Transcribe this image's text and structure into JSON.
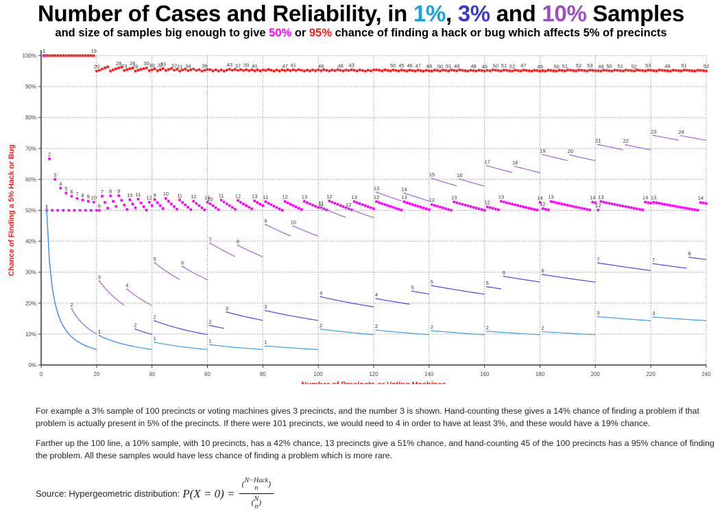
{
  "title": {
    "parts": [
      {
        "text": "Number of Cases and Reliability, in ",
        "color": "#000000"
      },
      {
        "text": "1%",
        "color": "#1aa0e0"
      },
      {
        "text": ", ",
        "color": "#000000"
      },
      {
        "text": "3%",
        "color": "#3b3bd0"
      },
      {
        "text": " and ",
        "color": "#000000"
      },
      {
        "text": "10%",
        "color": "#9b4fc0"
      },
      {
        "text": " Samples",
        "color": "#000000"
      }
    ]
  },
  "subtitle": {
    "parts": [
      {
        "text": "and size of samples big enough to give ",
        "color": "#000000"
      },
      {
        "text": "50%",
        "color": "#ff00ff"
      },
      {
        "text": " or ",
        "color": "#000000"
      },
      {
        "text": "95%",
        "color": "#ff1a1a"
      },
      {
        "text": " chance of finding a hack or bug which affects 5% of precincts",
        "color": "#000000"
      }
    ]
  },
  "chart_data": {
    "type": "scatter",
    "title": "Number of Cases and Reliability, in 1%, 3% and 10% Samples",
    "xlabel": "Number of Precincts or Voting Machines",
    "ylabel": "Chance of Finding a 5% Hack or Bug",
    "xlim": [
      0,
      240
    ],
    "ylim": [
      0,
      100
    ],
    "xticks": [
      0,
      20,
      40,
      60,
      80,
      100,
      120,
      140,
      160,
      180,
      200,
      220,
      240
    ],
    "yticks": [
      0,
      10,
      20,
      30,
      40,
      50,
      60,
      70,
      80,
      90,
      100
    ],
    "ytick_labels": [
      "0%",
      "10%",
      "20%",
      "30%",
      "40%",
      "50%",
      "60%",
      "70%",
      "80%",
      "90%",
      "100%"
    ],
    "grid": true,
    "hack_fraction": 0.05,
    "formula_note": "Hypergeometric: P(find) = 1 - C(N-Hack, n) / C(N, n)",
    "series": [
      {
        "name": "95% chance sample",
        "color": "#ff1a1a",
        "style": "markers",
        "labels": [
          [
            1,
            "1"
          ],
          [
            19,
            "19"
          ],
          [
            20,
            "20"
          ],
          [
            28,
            "28"
          ],
          [
            30,
            "23"
          ],
          [
            33,
            "26"
          ],
          [
            34,
            "26"
          ],
          [
            38,
            "30"
          ],
          [
            40,
            "30"
          ],
          [
            43,
            "32"
          ],
          [
            44,
            "33"
          ],
          [
            48,
            "37"
          ],
          [
            50,
            "31"
          ],
          [
            53,
            "34"
          ],
          [
            59,
            "38"
          ],
          [
            68,
            "43"
          ],
          [
            71,
            "37"
          ],
          [
            74,
            "39"
          ],
          [
            77,
            "40"
          ],
          [
            88,
            "47"
          ],
          [
            91,
            "41"
          ],
          [
            101,
            "46"
          ],
          [
            108,
            "48"
          ],
          [
            112,
            "43"
          ],
          [
            127,
            "50"
          ],
          [
            130,
            "45"
          ],
          [
            133,
            "46"
          ],
          [
            136,
            "47"
          ],
          [
            140,
            "48"
          ],
          [
            144,
            "50"
          ],
          [
            147,
            "51"
          ],
          [
            150,
            "46"
          ],
          [
            156,
            "48"
          ],
          [
            160,
            "49"
          ],
          [
            164,
            "50"
          ],
          [
            167,
            "51"
          ],
          [
            170,
            "52"
          ],
          [
            174,
            "47"
          ],
          [
            180,
            "49"
          ],
          [
            186,
            "50"
          ],
          [
            189,
            "51"
          ],
          [
            194,
            "52"
          ],
          [
            198,
            "53"
          ],
          [
            202,
            "49"
          ],
          [
            205,
            "50"
          ],
          [
            209,
            "51"
          ],
          [
            214,
            "52"
          ],
          [
            219,
            "53"
          ],
          [
            226,
            "49"
          ],
          [
            232,
            "51"
          ],
          [
            240,
            "52"
          ]
        ]
      },
      {
        "name": "50% chance sample",
        "color": "#ff00ff",
        "style": "markers"
      },
      {
        "name": "10% sample",
        "color": "#a45ee0",
        "style": "segments"
      },
      {
        "name": "3% sample",
        "color": "#4646dc",
        "style": "segments"
      },
      {
        "name": "1% sample",
        "color": "#3a9be8",
        "style": "segments"
      }
    ]
  },
  "notes": {
    "para1": "For example a 3% sample of 100 precincts or voting machines gives 3 precincts, and the number 3 is shown. Hand-counting these gives a 14% chance of finding a problem if that problem is actually present in 5% of the precincts. If there were 101 precincts, we would need to 4 in order to have at least 3%, and these would have a 19% chance.",
    "para2": "Farther up the 100 line, a 10% sample, with 10 precincts, has a 42% chance, 13 precincts give a 51% chance, and hand-counting 45 of the 100 precincts has a 95% chance of finding the problem. All these samples would have less chance of finding a problem which is more rare.",
    "source_label": "Source: Hypergeometric distribution:",
    "formula_lhs": "P(X = 0) =",
    "formula_num_top": "N−Hack",
    "formula_num_bottom": "n",
    "formula_den_top": "N",
    "formula_den_bottom": "n"
  }
}
